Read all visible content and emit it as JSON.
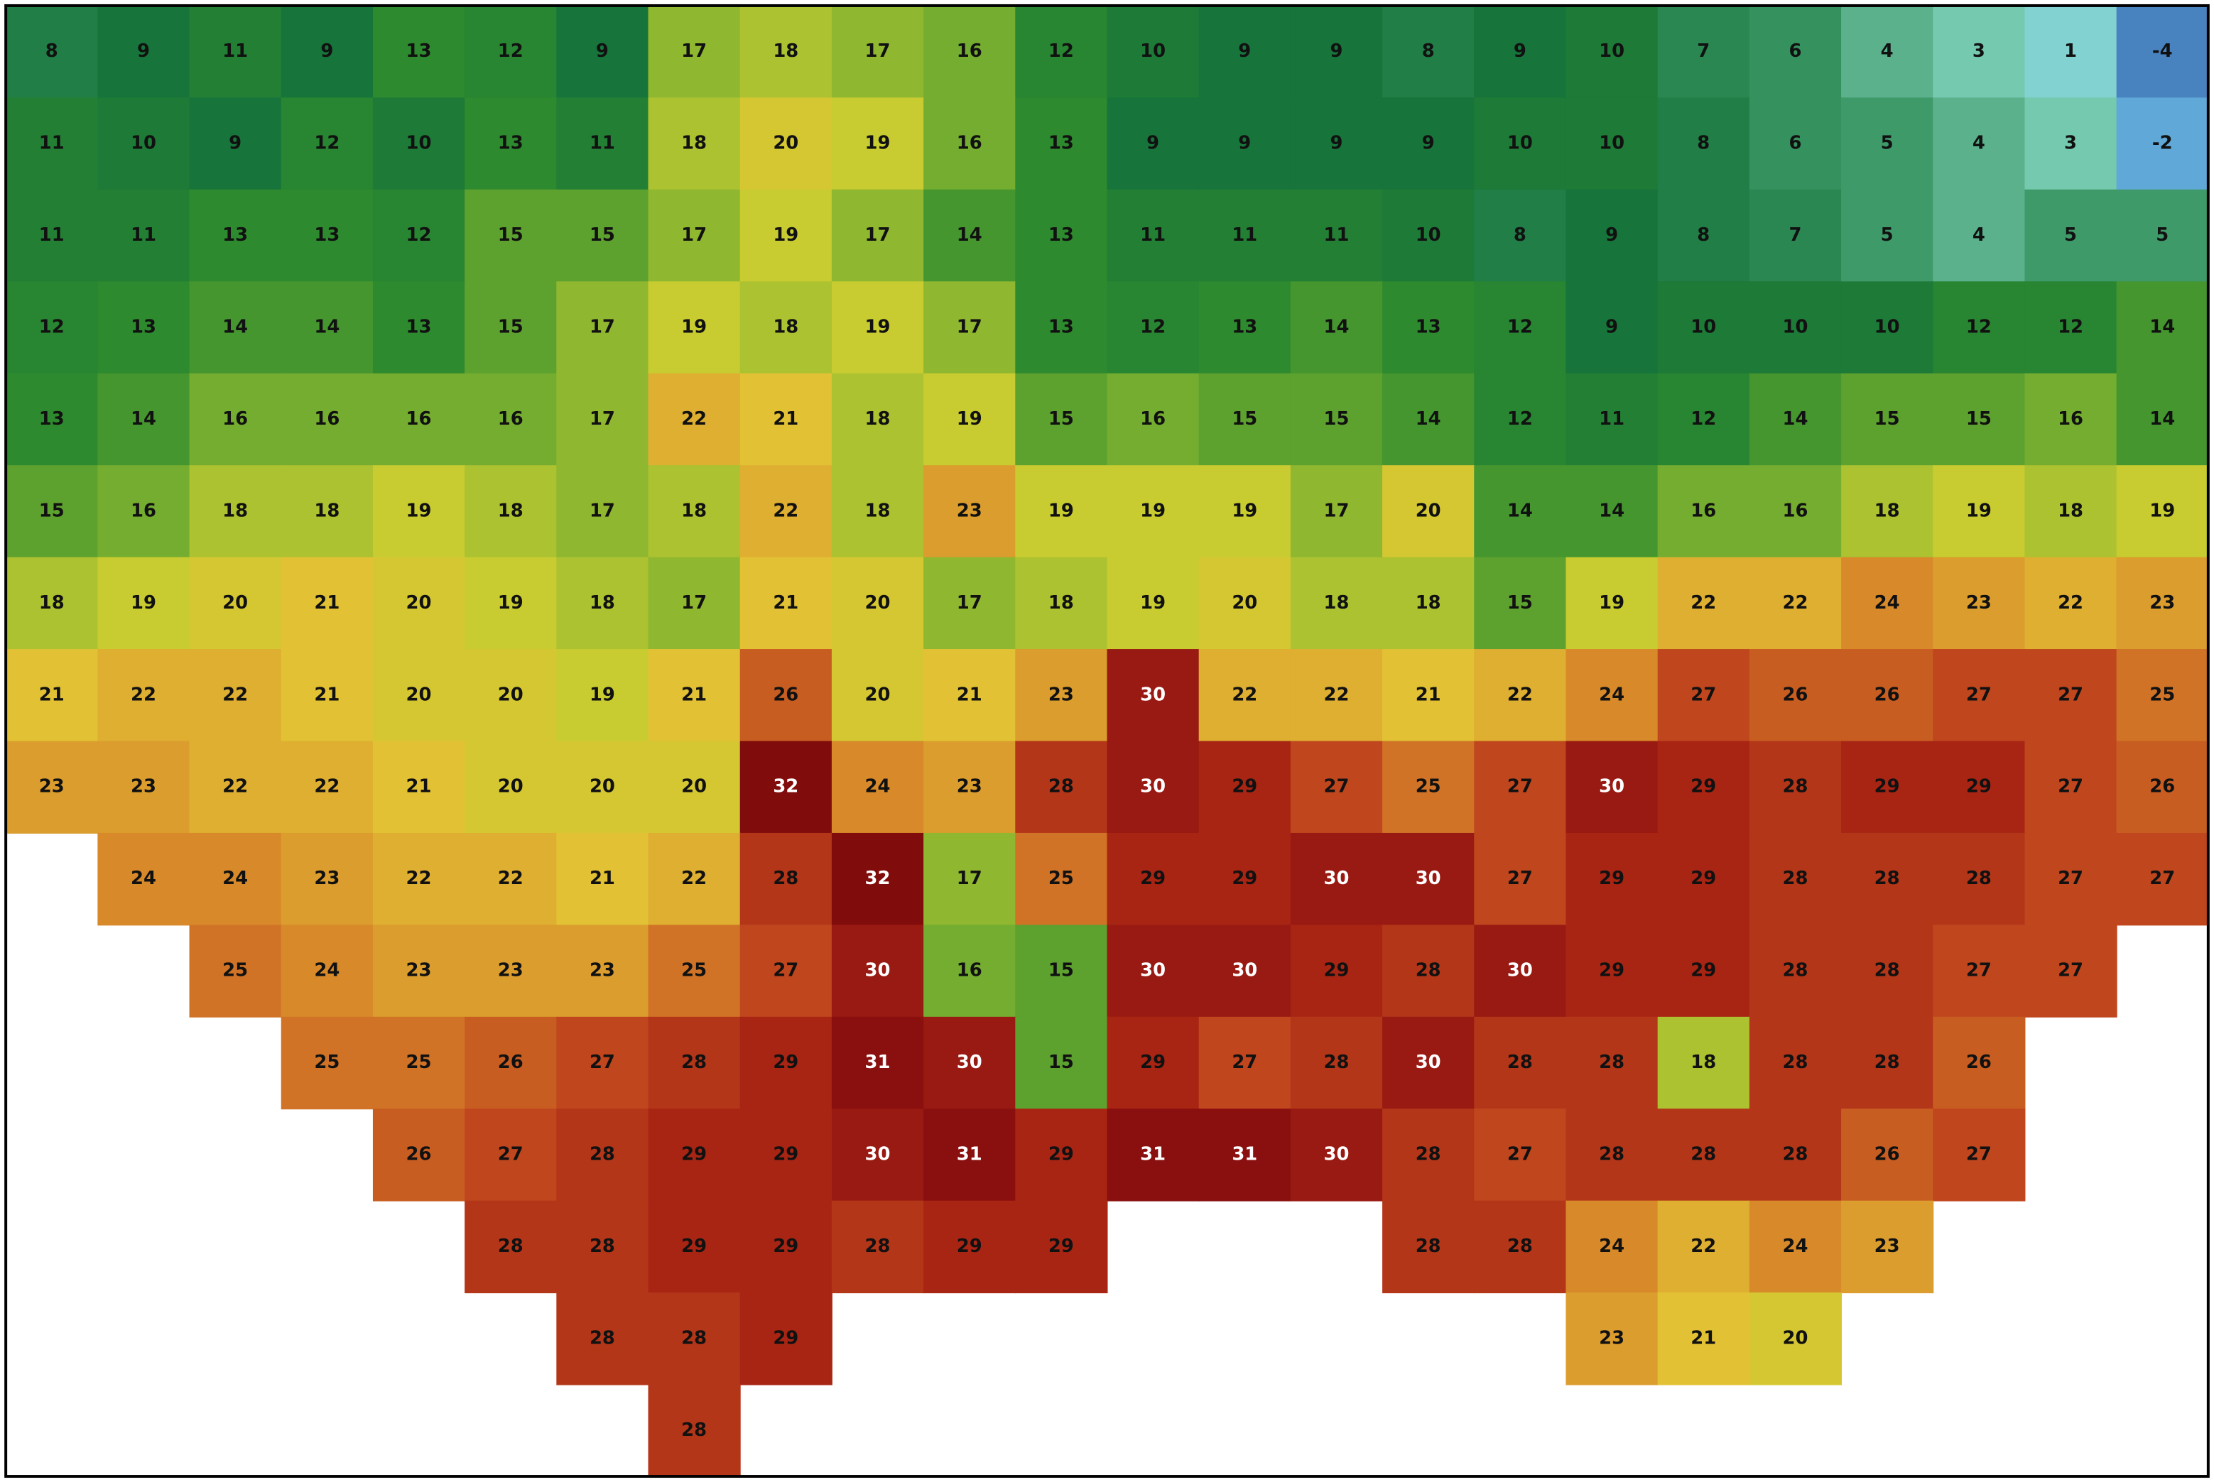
{
  "map": {
    "type": "heatmap",
    "colorscale": [
      {
        "value": -8,
        "color": "#1b3a8c"
      },
      {
        "value": -2,
        "color": "#5fa8d8"
      },
      {
        "value": 2,
        "color": "#8fe0d0"
      },
      {
        "value": 5,
        "color": "#3f9a6a"
      },
      {
        "value": 9,
        "color": "#17743a"
      },
      {
        "value": 13,
        "color": "#2e8a2e"
      },
      {
        "value": 16,
        "color": "#74ad30"
      },
      {
        "value": 19,
        "color": "#c8cc30"
      },
      {
        "value": 21,
        "color": "#e2c234"
      },
      {
        "value": 24,
        "color": "#d88a2a"
      },
      {
        "value": 27,
        "color": "#c0461e"
      },
      {
        "value": 29,
        "color": "#a82514"
      },
      {
        "value": 31,
        "color": "#8a0f0f"
      },
      {
        "value": 34,
        "color": "#6e0606"
      }
    ],
    "white_labels_from": 30,
    "rows": [
      [
        8,
        9,
        11,
        9,
        13,
        12,
        9,
        17,
        18,
        17,
        16,
        12,
        10,
        9,
        9,
        8,
        9,
        10,
        7,
        6,
        4,
        3,
        1,
        -4
      ],
      [
        11,
        10,
        9,
        12,
        10,
        13,
        11,
        18,
        20,
        19,
        16,
        13,
        9,
        9,
        9,
        9,
        10,
        10,
        8,
        6,
        5,
        4,
        3,
        -2
      ],
      [
        11,
        11,
        13,
        13,
        12,
        15,
        15,
        17,
        19,
        17,
        14,
        13,
        11,
        11,
        11,
        10,
        8,
        9,
        8,
        7,
        5,
        4,
        5,
        5
      ],
      [
        12,
        13,
        14,
        14,
        13,
        15,
        17,
        19,
        18,
        19,
        17,
        13,
        12,
        13,
        14,
        13,
        12,
        9,
        10,
        10,
        10,
        12,
        12,
        14
      ],
      [
        13,
        14,
        16,
        16,
        16,
        16,
        17,
        22,
        21,
        18,
        19,
        15,
        16,
        15,
        15,
        14,
        12,
        11,
        12,
        14,
        15,
        15,
        16,
        14
      ],
      [
        15,
        16,
        18,
        18,
        19,
        18,
        17,
        18,
        22,
        18,
        23,
        19,
        19,
        19,
        17,
        20,
        14,
        14,
        16,
        16,
        18,
        19,
        18,
        19
      ],
      [
        18,
        19,
        20,
        21,
        20,
        19,
        18,
        17,
        21,
        20,
        17,
        18,
        19,
        20,
        18,
        18,
        15,
        19,
        22,
        22,
        24,
        23,
        22,
        23
      ],
      [
        21,
        22,
        22,
        21,
        20,
        20,
        19,
        21,
        26,
        20,
        21,
        23,
        30,
        22,
        22,
        21,
        22,
        24,
        27,
        26,
        26,
        27,
        27,
        25
      ],
      [
        23,
        23,
        22,
        22,
        21,
        20,
        20,
        20,
        32,
        24,
        23,
        28,
        30,
        29,
        27,
        25,
        27,
        30,
        29,
        28,
        29,
        29,
        27,
        26
      ],
      [
        null,
        24,
        24,
        23,
        22,
        22,
        21,
        22,
        28,
        32,
        17,
        25,
        29,
        29,
        30,
        30,
        27,
        29,
        29,
        28,
        28,
        28,
        27,
        27
      ],
      [
        null,
        null,
        25,
        24,
        23,
        23,
        23,
        25,
        27,
        30,
        16,
        15,
        30,
        30,
        29,
        28,
        30,
        29,
        29,
        28,
        28,
        27,
        27,
        null
      ],
      [
        null,
        null,
        null,
        25,
        25,
        26,
        27,
        28,
        29,
        31,
        30,
        15,
        29,
        27,
        28,
        30,
        28,
        28,
        18,
        28,
        28,
        26,
        null,
        null
      ],
      [
        null,
        null,
        null,
        null,
        26,
        27,
        28,
        29,
        29,
        30,
        31,
        29,
        31,
        31,
        30,
        28,
        27,
        28,
        28,
        28,
        26,
        27,
        null,
        null
      ],
      [
        null,
        null,
        null,
        null,
        null,
        28,
        28,
        29,
        29,
        28,
        29,
        29,
        null,
        null,
        null,
        28,
        28,
        24,
        22,
        24,
        23,
        null,
        null,
        null
      ],
      [
        null,
        null,
        null,
        null,
        null,
        null,
        28,
        28,
        29,
        null,
        null,
        null,
        null,
        null,
        null,
        null,
        null,
        23,
        21,
        20,
        null,
        null,
        null,
        null
      ],
      [
        null,
        null,
        null,
        null,
        null,
        null,
        null,
        28,
        null,
        null,
        null,
        null,
        null,
        null,
        null,
        null,
        null,
        null,
        null,
        null,
        null,
        null,
        null,
        null
      ]
    ]
  }
}
